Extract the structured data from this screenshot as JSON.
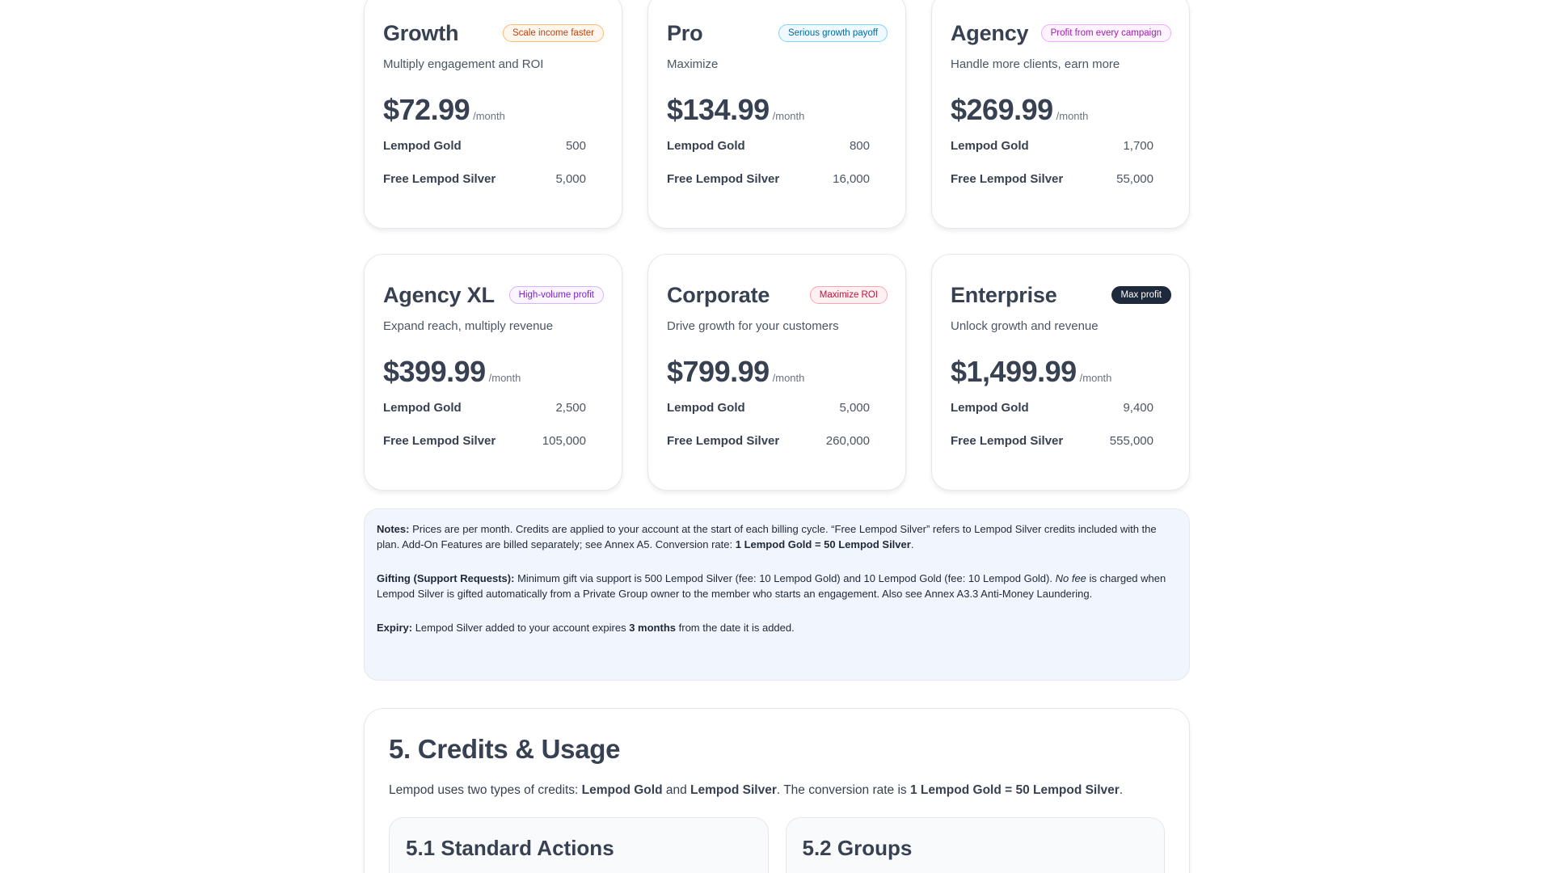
{
  "plans": [
    {
      "name": "Growth",
      "badge": "Scale income faster",
      "desc": "Multiply engagement and ROI",
      "price": "$72.99",
      "unit": "/month",
      "gold_label": "Lempod Gold",
      "gold": "500",
      "silver_label": "Free Lempod Silver",
      "silver": "5,000"
    },
    {
      "name": "Pro",
      "badge": "Serious growth payoff",
      "desc": "Maximize",
      "price": "$134.99",
      "unit": "/month",
      "gold_label": "Lempod Gold",
      "gold": "800",
      "silver_label": "Free Lempod Silver",
      "silver": "16,000"
    },
    {
      "name": "Agency",
      "badge": "Profit from every campaign",
      "desc": "Handle more clients, earn more",
      "price": "$269.99",
      "unit": "/month",
      "gold_label": "Lempod Gold",
      "gold": "1,700",
      "silver_label": "Free Lempod Silver",
      "silver": "55,000"
    },
    {
      "name": "Agency XL",
      "badge": "High-volume profit",
      "desc": "Expand reach, multiply revenue",
      "price": "$399.99",
      "unit": "/month",
      "gold_label": "Lempod Gold",
      "gold": "2,500",
      "silver_label": "Free Lempod Silver",
      "silver": "105,000"
    },
    {
      "name": "Corporate",
      "badge": "Maximize ROI",
      "desc": "Drive growth for your customers",
      "price": "$799.99",
      "unit": "/month",
      "gold_label": "Lempod Gold",
      "gold": "5,000",
      "silver_label": "Free Lempod Silver",
      "silver": "260,000"
    },
    {
      "name": "Enterprise",
      "badge": "Max profit",
      "desc": "Unlock growth and revenue",
      "price": "$1,499.99",
      "unit": "/month",
      "gold_label": "Lempod Gold",
      "gold": "9,400",
      "silver_label": "Free Lempod Silver",
      "silver": "555,000"
    }
  ],
  "notes": {
    "notes_label": "Notes:",
    "notes_text": "Prices are per month. Credits are applied to your account at the start of each billing cycle. “Free Lempod Silver” refers to Lempod Silver credits included with the plan. Add-On Features are billed separately; see Annex A5. Conversion rate:",
    "notes_rate": "1 Lempod Gold = 50 Lempod Silver",
    "notes_end": ".",
    "gifting_label": "Gifting (Support Requests):",
    "gifting_text": "Minimum gift via support is 500 Lempod Silver (fee: 10 Lempod Gold) and 10 Lempod Gold (fee: 10 Lempod Gold).",
    "gifting_em": "No fee",
    "gifting_text2": "is charged when Lempod Silver is gifted automatically from a Private Group owner to the member who starts an engagement. Also see Annex A3.3 Anti-Money Laundering.",
    "expiry_label": "Expiry:",
    "expiry_text": "Lempod Silver added to your account expires",
    "expiry_bold": "3 months",
    "expiry_text2": "from the date it is added."
  },
  "section": {
    "title": "5. Credits & Usage",
    "intro_1": "Lempod uses two types of credits:",
    "intro_gold": "Lempod Gold",
    "intro_and": "and",
    "intro_silver": "Lempod Silver",
    "intro_2": ". The conversion rate is",
    "intro_rate": "1 Lempod Gold = 50 Lempod Silver",
    "intro_end": ".",
    "sub1": "5.1 Standard Actions",
    "sub2": "5.2 Groups"
  },
  "colors": {
    "background": "#ffffff",
    "notes_background": "#f1f5fd",
    "enterprise_badge": "#1e293b"
  }
}
